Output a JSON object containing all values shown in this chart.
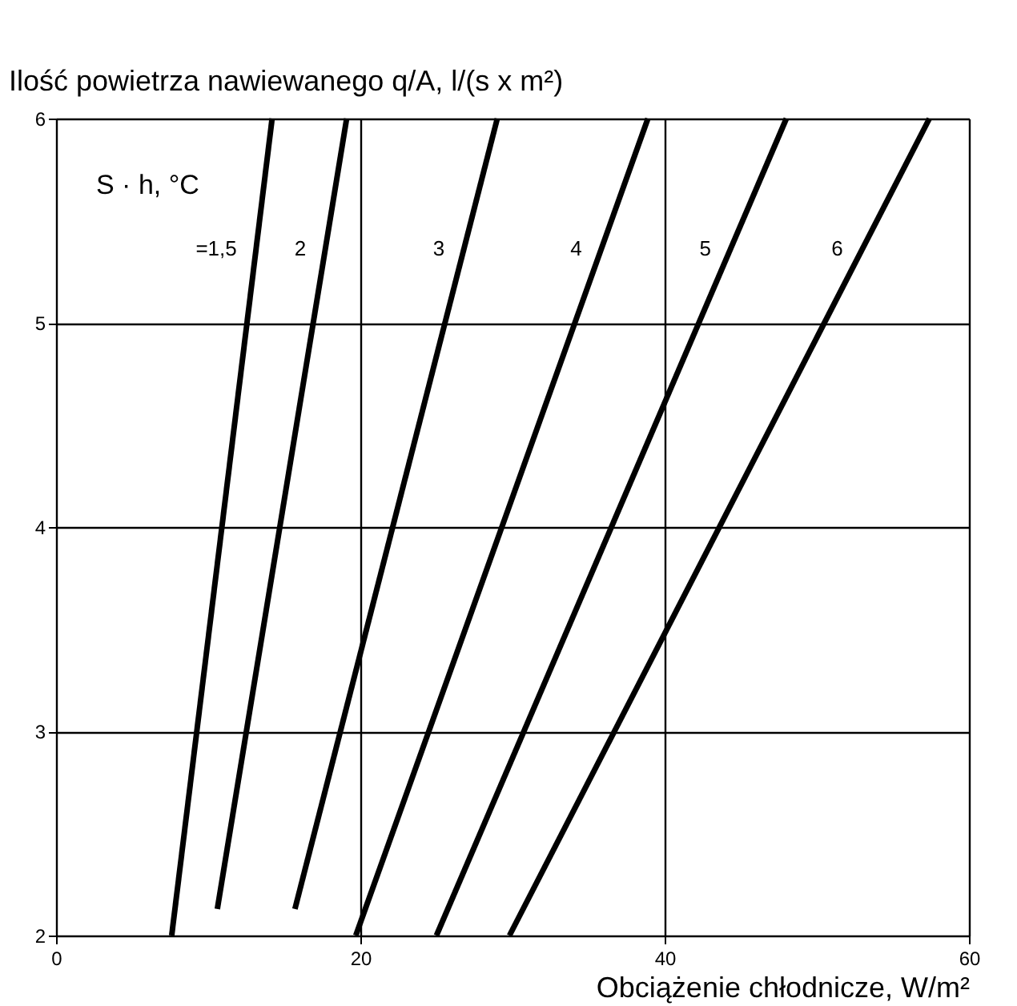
{
  "chart_data": {
    "type": "line",
    "xlabel": "Obciążenie chłodnicze, W/m²",
    "ylabel": "Ilość powietrza nawiewanego q/A, l/(s x m²)",
    "series": [
      {
        "name": "=1,5",
        "color": "#000000",
        "x": [
          7.6,
          14.2
        ],
        "values": [
          2,
          6
        ]
      },
      {
        "name": "2",
        "color": "#000000",
        "x": [
          10.6,
          19.1
        ],
        "values": [
          2.13,
          6
        ]
      },
      {
        "name": "3",
        "color": "#000000",
        "x": [
          15.7,
          29.0
        ],
        "values": [
          2.13,
          6
        ]
      },
      {
        "name": "4",
        "color": "#000000",
        "x": [
          19.7,
          38.9
        ],
        "values": [
          2,
          6
        ]
      },
      {
        "name": "5",
        "color": "#000000",
        "x": [
          25.0,
          48.0
        ],
        "values": [
          2,
          6
        ]
      },
      {
        "name": "6",
        "color": "#000000",
        "x": [
          29.8,
          57.4
        ],
        "values": [
          2,
          6
        ]
      }
    ],
    "annotations": [
      "S · h, °C"
    ],
    "xlim": [
      0,
      60
    ],
    "xticks": [
      0,
      20,
      40,
      60
    ],
    "ylim": [
      2,
      6
    ],
    "yticks": [
      2,
      3,
      4,
      5,
      6
    ],
    "grid": true,
    "legend": false,
    "marker": "none",
    "line_style": "solid"
  }
}
